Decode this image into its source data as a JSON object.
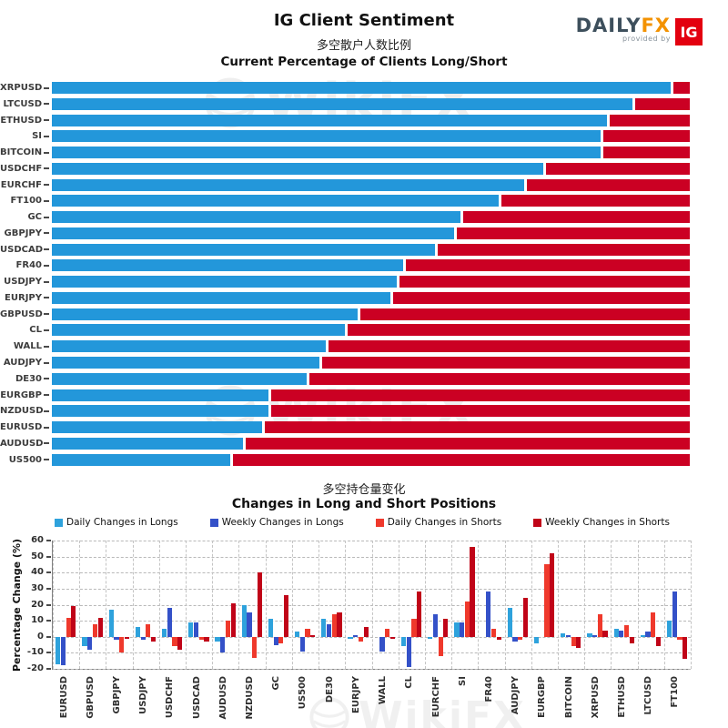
{
  "header": {
    "title": "IG Client Sentiment",
    "subtitle_cn": "多空散户人数比例",
    "subtitle_en": "Current Percentage of Clients Long/Short",
    "logo": {
      "daily": "DAILY",
      "fx": "FX",
      "provided_by": "provided by",
      "ig": "IG"
    }
  },
  "watermark": {
    "text": "WikiFX"
  },
  "colors": {
    "long_blue": "#2397da",
    "short_red": "#cb0023",
    "daily_longs": "#2ea2dc",
    "weekly_longs": "#3451c8",
    "daily_shorts": "#ef392c",
    "weekly_shorts": "#c00418"
  },
  "bottom": {
    "title_cn": "多空持仓量变化",
    "title_en": "Changes in Long and Short Positions",
    "ylabel": "Percentage Change (%)"
  },
  "chart_data": [
    {
      "type": "bar",
      "orientation": "horizontal-stacked",
      "title": "Current Percentage of Clients Long/Short",
      "legend_position": "none",
      "grid": false,
      "xlim": [
        0,
        100
      ],
      "categories": [
        "XRPUSD",
        "LTCUSD",
        "ETHUSD",
        "SI",
        "BITCOIN",
        "USDCHF",
        "EURCHF",
        "FT100",
        "GC",
        "GBPJPY",
        "USDCAD",
        "FR40",
        "USDJPY",
        "EURJPY",
        "GBPUSD",
        "CL",
        "WALL",
        "AUDJPY",
        "DE30",
        "EURGBP",
        "NZDUSD",
        "EURUSD",
        "AUDUSD",
        "US500"
      ],
      "series": [
        {
          "name": "Percent Long",
          "color": "#2397da",
          "values": [
            97,
            91,
            87,
            86,
            86,
            77,
            74,
            70,
            64,
            63,
            60,
            55,
            54,
            53,
            48,
            46,
            43,
            42,
            40,
            34,
            34,
            33,
            30,
            28
          ]
        },
        {
          "name": "Percent Short",
          "color": "#cb0023",
          "values": [
            3,
            9,
            13,
            14,
            14,
            23,
            26,
            30,
            36,
            37,
            40,
            45,
            46,
            47,
            52,
            54,
            57,
            58,
            60,
            66,
            66,
            67,
            70,
            72
          ]
        }
      ]
    },
    {
      "type": "bar",
      "orientation": "vertical-grouped",
      "title": "Changes in Long and Short Positions",
      "title_cn": "多空持仓量变化",
      "xlabel": "",
      "ylabel": "Percentage Change (%)",
      "ylim": [
        -20,
        60
      ],
      "yticks": [
        60,
        50,
        40,
        30,
        20,
        10,
        0,
        -10,
        -20
      ],
      "grid": true,
      "legend_position": "top",
      "categories": [
        "EURUSD",
        "GBPUSD",
        "GBPJPY",
        "USDJPY",
        "USDCHF",
        "USDCAD",
        "AUDUSD",
        "NZDUSD",
        "GC",
        "US500",
        "DE30",
        "EURJPY",
        "WALL",
        "CL",
        "EURCHF",
        "SI",
        "FR40",
        "AUDJPY",
        "EURGBP",
        "BITCOIN",
        "XRPUSD",
        "ETHUSD",
        "LTCUSD",
        "FT100"
      ],
      "series": [
        {
          "name": "Daily Changes in Longs",
          "color": "#2ea2dc",
          "values": [
            -17,
            -6,
            17,
            6,
            5,
            9,
            -3,
            20,
            11,
            3,
            11,
            -1,
            0,
            -6,
            -1,
            9,
            0,
            18,
            -4,
            2,
            2,
            5,
            1,
            10
          ]
        },
        {
          "name": "Weekly Changes in Longs",
          "color": "#3451c8",
          "values": [
            -18,
            -8,
            -2,
            -2,
            18,
            9,
            -10,
            15,
            -5,
            -9,
            8,
            1,
            -9,
            -19,
            14,
            9,
            28,
            -3,
            0,
            1,
            1,
            4,
            3,
            28
          ]
        },
        {
          "name": "Daily Changes in Shorts",
          "color": "#ef392c",
          "values": [
            12,
            8,
            -10,
            8,
            -6,
            -2,
            10,
            -13,
            -4,
            5,
            14,
            -3,
            5,
            11,
            -12,
            22,
            5,
            -2,
            45,
            -6,
            14,
            7,
            15,
            -2
          ]
        },
        {
          "name": "Weekly Changes in Shorts",
          "color": "#c00418",
          "values": [
            19,
            12,
            -1,
            -3,
            -8,
            -3,
            21,
            40,
            26,
            1,
            15,
            6,
            -1,
            28,
            11,
            56,
            -2,
            24,
            52,
            -7,
            4,
            -4,
            -6,
            -14
          ]
        }
      ]
    }
  ]
}
